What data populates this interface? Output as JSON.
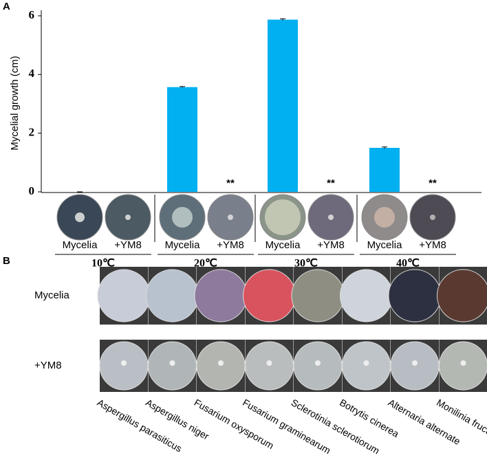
{
  "panels": [
    "A",
    "B"
  ],
  "chart_data": {
    "type": "bar",
    "ylabel": "Mycelial growth (cm)",
    "categories": [
      "10℃",
      "20℃",
      "30℃",
      "40℃"
    ],
    "series": [
      {
        "name": "Mycelia",
        "color": "#00b0f0",
        "values": [
          0,
          3.57,
          5.87,
          1.5
        ],
        "errors": [
          0,
          0.02,
          0.03,
          0.03
        ]
      },
      {
        "name": "+YM8",
        "color": "#00b0f0",
        "values": [
          0,
          0,
          0,
          0
        ]
      }
    ],
    "significance": [
      null,
      "**",
      "**",
      "**"
    ],
    "ylim": [
      0,
      6
    ],
    "yticks": [
      0,
      2,
      4,
      6
    ]
  },
  "panel_b": {
    "rows": [
      "Mycelia",
      "+YM8"
    ],
    "species": [
      "Aspergillus parasiticus",
      "Aspergillus niger",
      "Fusarium oxysporum",
      "Fusarium graminearum",
      "Sclerotinia sclerotiorum",
      "Botrytis cinerea",
      "Alternaria alternate",
      "Monilinia fructicola"
    ]
  }
}
